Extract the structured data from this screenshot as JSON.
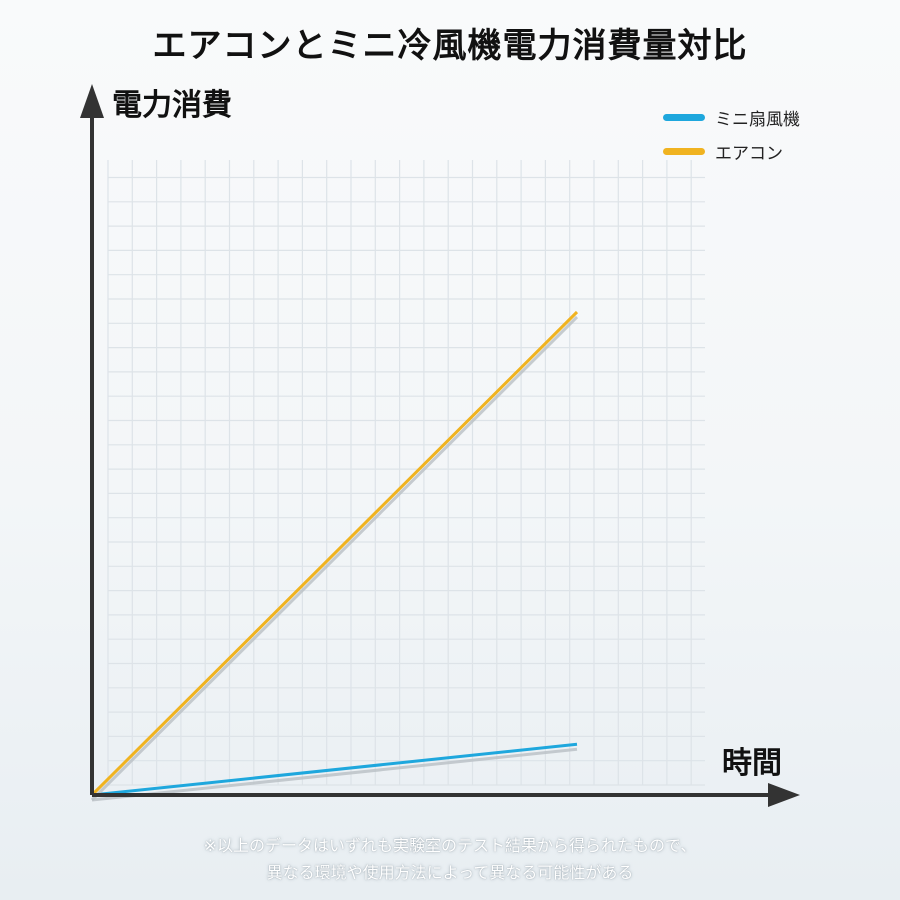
{
  "chart_data": {
    "type": "line",
    "title": "エアコンとミニ冷風機電力消費量対比",
    "ylabel": "電力消費",
    "xlabel": "時間",
    "grid": true,
    "legend_position": "top-right",
    "x": [
      0,
      1
    ],
    "xlim": [
      0,
      1.3
    ],
    "ylim": [
      0,
      1.3
    ],
    "series": [
      {
        "name": "ミニ扇風機",
        "color": "#1ea7dd",
        "x": [
          0,
          1
        ],
        "y": [
          0,
          0.105
        ]
      },
      {
        "name": "エアコン",
        "color": "#f0b320",
        "x": [
          0,
          1
        ],
        "y": [
          0,
          1.0
        ]
      }
    ]
  },
  "footnote": {
    "line1": "※以上のデータはいずれも実験室のテスト結果から得られたもので、",
    "line2": "異なる環境や使用方法によって異なる可能性がある"
  }
}
